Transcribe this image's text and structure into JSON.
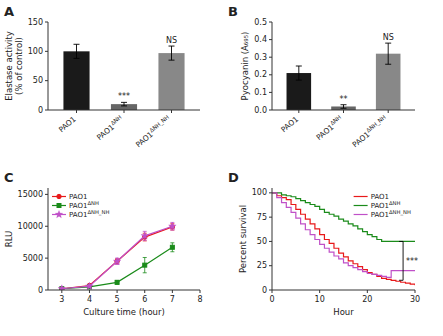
{
  "chart_data": [
    {
      "type": "bar",
      "title": "A",
      "ylabel": "Elastase activity\n(% of control)",
      "categories": [
        "PAO1",
        "PAO1ΔNH",
        "PAO1ΔNH_NH"
      ],
      "values": [
        100,
        10,
        97
      ],
      "errors": [
        12,
        3,
        12
      ],
      "colors": [
        "#1a1a1a",
        "#666666",
        "#888888"
      ],
      "ylim": [
        0,
        150
      ],
      "yticks": [
        0,
        50,
        100,
        150
      ],
      "annotations": [
        {
          "text": "***",
          "category": "PAO1ΔNH"
        },
        {
          "text": "NS",
          "category": "PAO1ΔNH_NH"
        }
      ]
    },
    {
      "type": "bar",
      "title": "B",
      "ylabel": "Pyocyanin (A₆₉₅)",
      "categories": [
        "PAO1",
        "PAO1ΔNH",
        "PAO1ΔNH_NH"
      ],
      "values": [
        0.21,
        0.02,
        0.32
      ],
      "errors": [
        0.04,
        0.01,
        0.06
      ],
      "colors": [
        "#1a1a1a",
        "#666666",
        "#888888"
      ],
      "ylim": [
        0,
        0.5
      ],
      "yticks": [
        {
          "value": 0,
          "label": "0.0"
        },
        0.1,
        0.2,
        0.3,
        0.4,
        0.5
      ],
      "annotations": [
        {
          "text": "**",
          "category": "PAO1ΔNH"
        },
        {
          "text": "NS",
          "category": "PAO1ΔNH_NH"
        }
      ]
    },
    {
      "type": "line",
      "title": "C",
      "xlabel": "Culture time (hour)",
      "ylabel": "RLU",
      "x": [
        3,
        4,
        5,
        6,
        7
      ],
      "series": [
        {
          "name": "PAO1",
          "color": "#e8191a",
          "marker": "circle",
          "values": [
            200,
            700,
            4500,
            8300,
            9900
          ],
          "errors": [
            100,
            200,
            400,
            600,
            500
          ]
        },
        {
          "name": "PAO1ΔNH",
          "color": "#1a8b1a",
          "marker": "square",
          "values": [
            200,
            500,
            1200,
            3900,
            6700
          ],
          "errors": [
            100,
            200,
            300,
            1200,
            700
          ]
        },
        {
          "name": "PAO1ΔNH_NH",
          "color": "#c050c8",
          "marker": "star",
          "values": [
            200,
            600,
            4500,
            8500,
            10000
          ],
          "errors": [
            100,
            200,
            500,
            700,
            600
          ]
        }
      ],
      "xlim": [
        2.5,
        8
      ],
      "ylim": [
        0,
        16000
      ],
      "xticks": [
        3,
        4,
        5,
        6,
        7,
        8
      ],
      "yticks": [
        0,
        5000,
        10000,
        15000
      ],
      "legend": "upper left"
    },
    {
      "type": "line",
      "line_style": "step",
      "title": "D",
      "xlabel": "Hour",
      "ylabel": "Percent survival",
      "x": [
        0,
        1,
        2,
        3,
        4,
        5,
        6,
        7,
        8,
        9,
        10,
        11,
        12,
        13,
        14,
        15,
        16,
        17,
        18,
        19,
        20,
        21,
        22,
        23,
        24,
        25,
        26,
        27,
        28,
        29,
        30
      ],
      "series": [
        {
          "name": "PAO1",
          "color": "#e8191a",
          "values": [
            100,
            97,
            95,
            93,
            88,
            83,
            78,
            73,
            68,
            63,
            57,
            52,
            48,
            43,
            38,
            34,
            30,
            27,
            24,
            21,
            18,
            16,
            14,
            12,
            11,
            10,
            9,
            8,
            7,
            6,
            5
          ]
        },
        {
          "name": "PAO1ΔNH",
          "color": "#1a8b1a",
          "values": [
            100,
            100,
            98,
            97,
            96,
            94,
            92,
            90,
            88,
            86,
            83,
            80,
            78,
            76,
            73,
            71,
            68,
            66,
            63,
            60,
            57,
            55,
            52,
            50,
            50,
            50,
            50,
            50,
            50,
            50,
            50
          ]
        },
        {
          "name": "PAO1ΔNH_NH",
          "color": "#c050c8",
          "values": [
            100,
            95,
            90,
            85,
            80,
            74,
            68,
            62,
            57,
            52,
            47,
            43,
            39,
            35,
            32,
            28,
            25,
            23,
            21,
            19,
            17,
            16,
            15,
            14,
            13,
            20,
            20,
            20,
            20,
            20,
            20
          ]
        }
      ],
      "xlim": [
        0,
        30
      ],
      "ylim": [
        0,
        105
      ],
      "xticks": [
        0,
        10,
        20,
        30
      ],
      "yticks": [
        0,
        25,
        50,
        75,
        100
      ],
      "legend": "upper right",
      "annotations": [
        {
          "text": "***",
          "x": 27.5,
          "y1": 10,
          "y2": 50
        }
      ]
    }
  ]
}
